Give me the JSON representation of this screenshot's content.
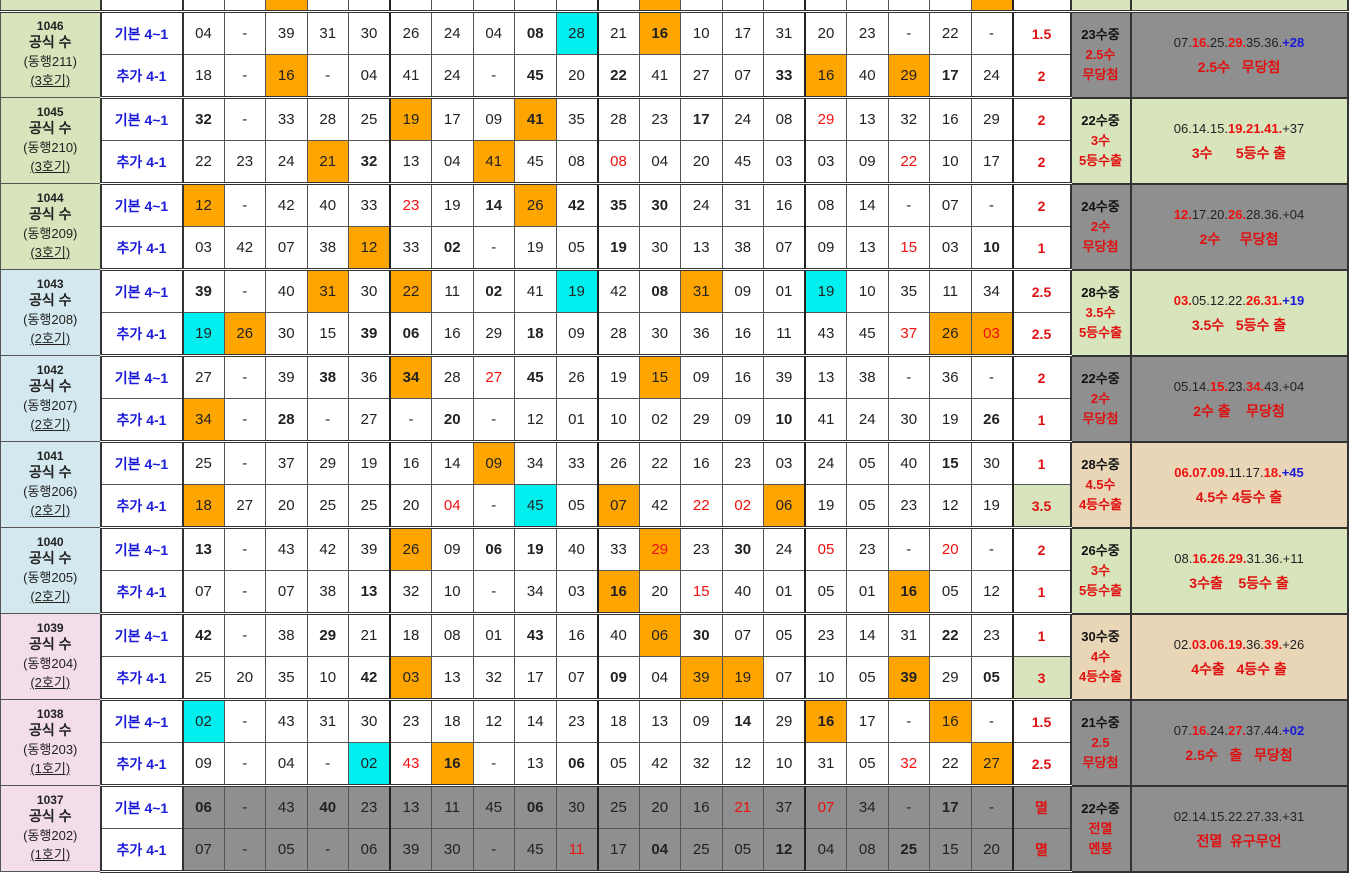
{
  "colors": {
    "orange": "#FFA500",
    "cyan": "#00F0F0",
    "green": "#D8E4BC",
    "gray": "#8f8f8f",
    "tan": "#E8D6B6",
    "blue": "#D4E9EF",
    "pink": "#F3DDEA"
  },
  "legend": "cell flags: o=orange highlight, c=cyan highlight, b=bold, r=red text",
  "top_partial_row": {
    "cells": [
      "",
      "",
      "o",
      "",
      "",
      "",
      "",
      "",
      "",
      "",
      "",
      "o",
      "",
      "",
      "",
      "",
      "",
      "",
      "",
      "o"
    ]
  },
  "groups": [
    {
      "round": "1046",
      "label": "공식 수",
      "partner": "(동행211)",
      "machine": "(3호기)",
      "label_bg": "green",
      "rows": [
        {
          "type": "기본 4~1",
          "cells": [
            "04",
            "-",
            "39",
            "31",
            "30",
            "26",
            "24",
            "04",
            "08:b",
            "28:c",
            "21",
            "16:ob",
            "10",
            "17",
            "31",
            "20",
            "23",
            "-",
            "22",
            "-"
          ],
          "score": "1.5"
        },
        {
          "type": "추가 4-1",
          "cells": [
            "18",
            "-",
            "16:o",
            "-",
            "04",
            "41",
            "24",
            "-",
            "45:b",
            "20",
            "22:b",
            "41",
            "27",
            "07",
            "33:b",
            "16:o",
            "40",
            "29:o",
            "17:b",
            "24"
          ],
          "score": "2"
        }
      ],
      "summary": [
        "23수중",
        "2.5수",
        "무당첨"
      ],
      "summary_bg": "gray",
      "result": [
        [
          "07.",
          ""
        ],
        [
          "16.",
          "red"
        ],
        [
          "25.",
          ""
        ],
        [
          "29.",
          "red"
        ],
        [
          "35.36.",
          ""
        ],
        [
          "+28",
          "blue"
        ]
      ],
      "result_note": "2.5수   무당첨",
      "result_bg": "gray"
    },
    {
      "round": "1045",
      "label": "공식 수",
      "partner": "(동행210)",
      "machine": "(3호기)",
      "label_bg": "green",
      "rows": [
        {
          "type": "기본 4~1",
          "cells": [
            "32:b",
            "-",
            "33",
            "28",
            "25",
            "19:o",
            "17",
            "09",
            "41:ob",
            "35",
            "28",
            "23",
            "17:b",
            "24",
            "08",
            "29:r",
            "13",
            "32",
            "16",
            "29"
          ],
          "score": "2"
        },
        {
          "type": "추가 4-1",
          "cells": [
            "22",
            "23",
            "24",
            "21:o",
            "32:b",
            "13",
            "04",
            "41:o",
            "45",
            "08",
            "08:r",
            "04",
            "20",
            "45",
            "03",
            "03",
            "09",
            "22:r",
            "10",
            "17"
          ],
          "score": "2"
        }
      ],
      "summary": [
        "22수중",
        "3수",
        "5등수출"
      ],
      "summary_bg": "green",
      "result": [
        [
          "06.14.15.",
          ""
        ],
        [
          "19.21.41.",
          "red"
        ],
        [
          "+37",
          ""
        ]
      ],
      "result_note": "3수      5등수 출",
      "result_bg": "green"
    },
    {
      "round": "1044",
      "label": "공식 수",
      "partner": "(동행209)",
      "machine": "(3호기)",
      "label_bg": "green",
      "rows": [
        {
          "type": "기본 4~1",
          "cells": [
            "12:o",
            "-",
            "42",
            "40",
            "33",
            "23:r",
            "19",
            "14:b",
            "26:o",
            "42:b",
            "35:b",
            "30:b",
            "24",
            "31",
            "16",
            "08",
            "14",
            "-",
            "07",
            "-"
          ],
          "score": "2"
        },
        {
          "type": "추가 4-1",
          "cells": [
            "03",
            "42",
            "07",
            "38",
            "12:o",
            "33",
            "02:b",
            "-",
            "19",
            "05",
            "19:b",
            "30",
            "13",
            "38",
            "07",
            "09",
            "13",
            "15:r",
            "03",
            "10:b"
          ],
          "score": "1"
        }
      ],
      "summary": [
        "24수중",
        "2수",
        "무당첨"
      ],
      "summary_bg": "gray",
      "result": [
        [
          "12.",
          "red"
        ],
        [
          "17.20.",
          ""
        ],
        [
          "26.",
          "red"
        ],
        [
          "28.36.+04",
          ""
        ]
      ],
      "result_note": "2수     무당첨",
      "result_bg": "gray"
    },
    {
      "round": "1043",
      "label": "공식 수",
      "partner": "(동행208)",
      "machine": "(2호기)",
      "label_bg": "blue",
      "rows": [
        {
          "type": "기본 4~1",
          "cells": [
            "39:b",
            "-",
            "40",
            "31:o",
            "30",
            "22:o",
            "11",
            "02:b",
            "41",
            "19:c",
            "42",
            "08:b",
            "31:o",
            "09",
            "01",
            "19:c",
            "10",
            "35",
            "11",
            "34"
          ],
          "score": "2.5"
        },
        {
          "type": "추가 4-1",
          "cells": [
            "19:c",
            "26:o",
            "30",
            "15",
            "39:b",
            "06:b",
            "16",
            "29",
            "18:b",
            "09",
            "28",
            "30",
            "36",
            "16",
            "11",
            "43",
            "45",
            "37:r",
            "26:o",
            "03:or"
          ],
          "score": "2.5"
        }
      ],
      "summary": [
        "28수중",
        "3.5수",
        "5등수출"
      ],
      "summary_bg": "green",
      "result": [
        [
          "03.",
          "red"
        ],
        [
          "05.12.22.",
          ""
        ],
        [
          "26.31.",
          "red"
        ],
        [
          "+19",
          "blue"
        ]
      ],
      "result_note": "3.5수   5등수 출",
      "result_bg": "green"
    },
    {
      "round": "1042",
      "label": "공식 수",
      "partner": "(동행207)",
      "machine": "(2호기)",
      "label_bg": "blue",
      "rows": [
        {
          "type": "기본 4~1",
          "cells": [
            "27",
            "-",
            "39",
            "38:b",
            "36",
            "34:ob",
            "28",
            "27:r",
            "45:b",
            "26",
            "19",
            "15:o",
            "09",
            "16",
            "39",
            "13",
            "38",
            "-",
            "36",
            "-"
          ],
          "score": "2"
        },
        {
          "type": "추가 4-1",
          "cells": [
            "34:o",
            "-",
            "28:b",
            "-",
            "27",
            "-",
            "20:b",
            "-",
            "12",
            "01",
            "10",
            "02",
            "29",
            "09",
            "10:b",
            "41",
            "24",
            "30",
            "19",
            "26:b"
          ],
          "score": "1"
        }
      ],
      "summary": [
        "22수중",
        "2수",
        "무당첨"
      ],
      "summary_bg": "gray",
      "result": [
        [
          "05.14.",
          ""
        ],
        [
          "15.",
          "red"
        ],
        [
          "23.",
          ""
        ],
        [
          "34.",
          "red"
        ],
        [
          "43.+04",
          ""
        ]
      ],
      "result_note": "2수 출    무당첨",
      "result_bg": "gray"
    },
    {
      "round": "1041",
      "label": "공식 수",
      "partner": "(동행206)",
      "machine": "(2호기)",
      "label_bg": "blue",
      "rows": [
        {
          "type": "기본 4~1",
          "cells": [
            "25",
            "-",
            "37",
            "29",
            "19",
            "16",
            "14",
            "09:o",
            "34",
            "33",
            "26",
            "22",
            "16",
            "23",
            "03",
            "24",
            "05",
            "40",
            "15:b",
            "30"
          ],
          "score": "1"
        },
        {
          "type": "추가 4-1",
          "cells": [
            "18:o",
            "27",
            "20",
            "25",
            "25",
            "20",
            "04:r",
            "-",
            "45:c",
            "05",
            "07:o",
            "42",
            "22:r",
            "02:r",
            "06:o",
            "19",
            "05",
            "23",
            "12",
            "19"
          ],
          "score": "3.5",
          "score_bg": "green"
        }
      ],
      "summary": [
        "28수중",
        "4.5수",
        "4등수출"
      ],
      "summary_bg": "tan",
      "result": [
        [
          "06.07.09.",
          "red"
        ],
        [
          "11.17.",
          ""
        ],
        [
          "18.",
          "red"
        ],
        [
          "+45",
          "blue"
        ]
      ],
      "result_note": "4.5수 4등수 출",
      "result_bg": "tan"
    },
    {
      "round": "1040",
      "label": "공식 수",
      "partner": "(동행205)",
      "machine": "(2호기)",
      "label_bg": "blue",
      "rows": [
        {
          "type": "기본 4~1",
          "cells": [
            "13:b",
            "-",
            "43",
            "42",
            "39",
            "26:o",
            "09",
            "06:b",
            "19:b",
            "40",
            "33",
            "29:or",
            "23",
            "30:b",
            "24",
            "05:r",
            "23",
            "-",
            "20:r",
            "-"
          ],
          "score": "2"
        },
        {
          "type": "추가 4-1",
          "cells": [
            "07",
            "-",
            "07",
            "38",
            "13:b",
            "32",
            "10",
            "-",
            "34",
            "03",
            "16:ob",
            "20",
            "15:r",
            "40",
            "01",
            "05",
            "01",
            "16:ob",
            "05",
            "12"
          ],
          "score": "1"
        }
      ],
      "summary": [
        "26수중",
        "3수",
        "5등수출"
      ],
      "summary_bg": "green",
      "result": [
        [
          "08.",
          ""
        ],
        [
          "16.26.29.",
          "red"
        ],
        [
          "31.36.+11",
          ""
        ]
      ],
      "result_note": "3수출    5등수 출",
      "result_bg": "green"
    },
    {
      "round": "1039",
      "label": "공식 수",
      "partner": "(동행204)",
      "machine": "(2호기)",
      "label_bg": "pink",
      "rows": [
        {
          "type": "기본 4~1",
          "cells": [
            "42:b",
            "-",
            "38",
            "29:b",
            "21",
            "18",
            "08",
            "01",
            "43:b",
            "16",
            "40",
            "06:o",
            "30:b",
            "07",
            "05",
            "23",
            "14",
            "31",
            "22:b",
            "23"
          ],
          "score": "1"
        },
        {
          "type": "추가 4-1",
          "cells": [
            "25",
            "20",
            "35",
            "10",
            "42:b",
            "03:o",
            "13",
            "32",
            "17",
            "07",
            "09:b",
            "04",
            "39:o",
            "19:o",
            "07",
            "10",
            "05",
            "39:ob",
            "29",
            "05:b"
          ],
          "score": "3",
          "score_bg": "green"
        }
      ],
      "summary": [
        "30수중",
        "4수",
        "4등수출"
      ],
      "summary_bg": "tan",
      "result": [
        [
          "02.",
          ""
        ],
        [
          "03.06.19.",
          "red"
        ],
        [
          "36.",
          ""
        ],
        [
          "39.",
          "red"
        ],
        [
          "+26",
          ""
        ]
      ],
      "result_note": "4수출   4등수 출",
      "result_bg": "tan"
    },
    {
      "round": "1038",
      "label": "공식 수",
      "partner": "(동행203)",
      "machine": "(1호기)",
      "label_bg": "pink",
      "rows": [
        {
          "type": "기본 4~1",
          "cells": [
            "02:c",
            "-",
            "43",
            "31",
            "30",
            "23",
            "18",
            "12",
            "14",
            "23",
            "18",
            "13",
            "09",
            "14:b",
            "29",
            "16:ob",
            "17",
            "-",
            "16:o",
            "-"
          ],
          "score": "1.5"
        },
        {
          "type": "추가 4-1",
          "cells": [
            "09",
            "-",
            "04",
            "-",
            "02:c",
            "43:r",
            "16:ob",
            "-",
            "13",
            "06:b",
            "05",
            "42",
            "32",
            "12",
            "10",
            "31",
            "05",
            "32:r",
            "22",
            "27:o"
          ],
          "score": "2.5"
        }
      ],
      "summary": [
        "21수중",
        "2.5",
        "무당첨"
      ],
      "summary_bg": "gray",
      "result": [
        [
          "07.",
          ""
        ],
        [
          "16.",
          "red"
        ],
        [
          "24.",
          ""
        ],
        [
          "27.",
          "red"
        ],
        [
          "37.44.",
          ""
        ],
        [
          "+02",
          "blue"
        ]
      ],
      "result_note": "2.5수   출   무당첨",
      "result_bg": "gray"
    },
    {
      "round": "1037",
      "label": "공식 수",
      "partner": "(동행202)",
      "machine": "(1호기)",
      "label_bg": "pink",
      "all_gray": true,
      "rows": [
        {
          "type": "기본 4~1",
          "cells": [
            "06:b",
            "-",
            "43",
            "40:b",
            "23",
            "13",
            "11",
            "45",
            "06:b",
            "30",
            "25",
            "20",
            "16",
            "21:r",
            "37",
            "07:r",
            "34",
            "-",
            "17:b",
            "-"
          ],
          "score": "멸"
        },
        {
          "type": "추가 4-1",
          "cells": [
            "07",
            "-",
            "05",
            "-",
            "06",
            "39",
            "30",
            "-",
            "45",
            "11:r",
            "17",
            "04:b",
            "25",
            "05",
            "12:b",
            "04",
            "08",
            "25:b",
            "15",
            "20"
          ],
          "score": "멸"
        }
      ],
      "summary": [
        "22수중",
        "전멸",
        "멘붕"
      ],
      "summary_bg": "gray",
      "result": [
        [
          "02.14.15.22.27.33.+31",
          ""
        ]
      ],
      "result_note": "전멸  유구무언",
      "result_bg": "gray"
    }
  ]
}
